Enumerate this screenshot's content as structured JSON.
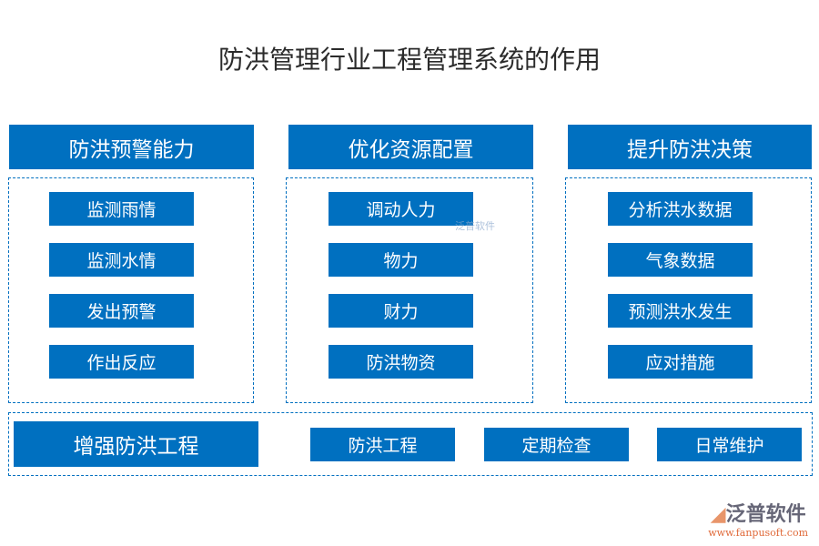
{
  "title": "防洪管理行业工程管理系统的作用",
  "columns": [
    {
      "header": "防洪预警能力",
      "items": [
        "监测雨情",
        "监测水情",
        "发出预警",
        "作出反应"
      ]
    },
    {
      "header": "优化资源配置",
      "items": [
        "调动人力",
        "物力",
        "财力",
        "防洪物资"
      ]
    },
    {
      "header": "提升防洪决策",
      "items": [
        "分析洪水数据",
        "气象数据",
        "预测洪水发生",
        "应对措施"
      ]
    }
  ],
  "bottom": {
    "header": "增强防洪工程",
    "items": [
      "防洪工程",
      "定期检查",
      "日常维护"
    ]
  },
  "watermark": "泛普软件",
  "logo": {
    "name": "泛普软件",
    "url": "www.fanpusoft.com"
  },
  "colors": {
    "accent": "#0070c0"
  }
}
